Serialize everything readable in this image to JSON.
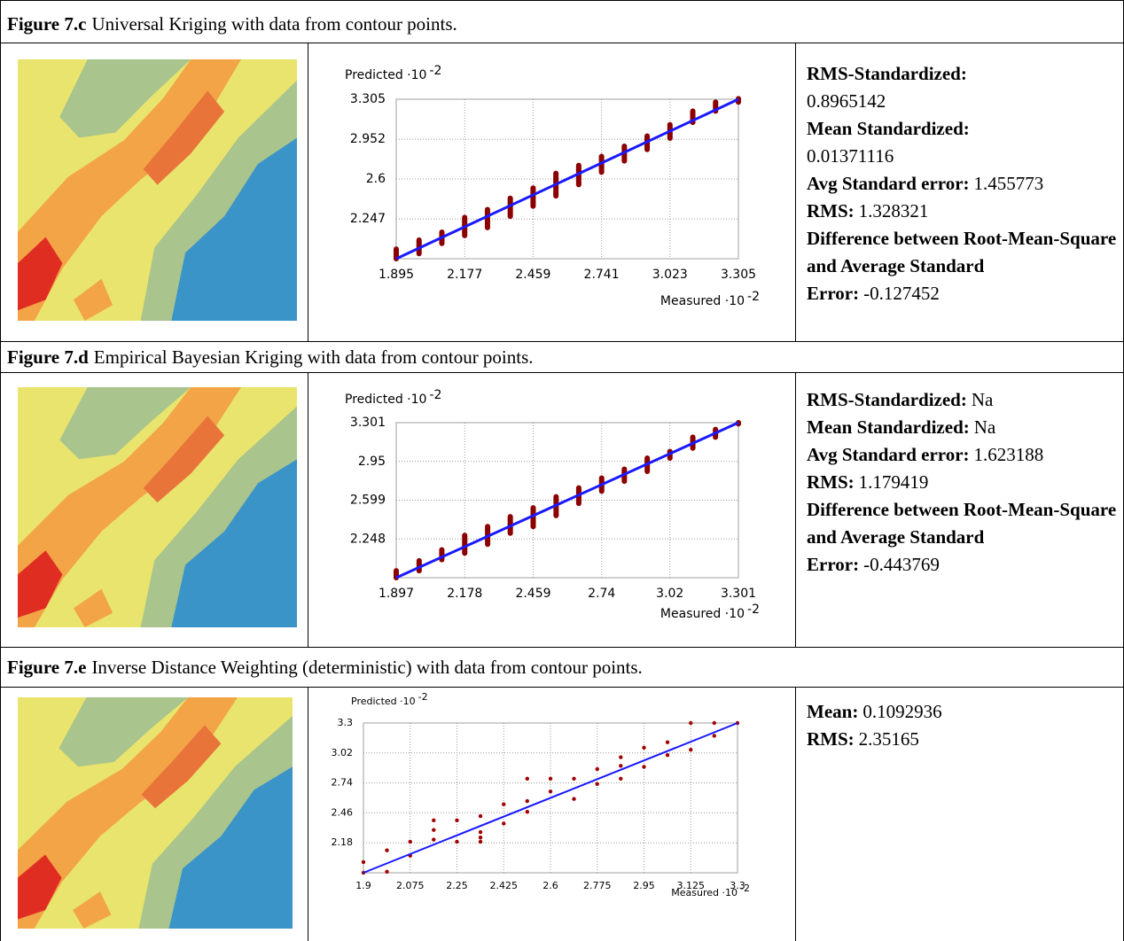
{
  "figures": [
    {
      "caption": {
        "label": "Figure 7.c",
        "text": "Universal Kriging with data from contour points."
      },
      "chart": {
        "type": "scatter",
        "ylabel": "Predicted ·10",
        "ylabel_exponent": "-2",
        "xlabel": "Measured ·10",
        "xlabel_exponent": "-2",
        "xlim": [
          1.895,
          3.305
        ],
        "ylim": [
          1.895,
          3.305
        ],
        "xticks": [
          1.895,
          2.177,
          2.459,
          2.741,
          3.023,
          3.305
        ],
        "yticks": [
          2.247,
          2.6,
          2.952,
          3.305
        ],
        "grid": true,
        "columns": {
          "color": "#8b0000",
          "x": [
            1.895,
            1.989,
            2.083,
            2.177,
            2.271,
            2.365,
            2.459,
            2.553,
            2.647,
            2.741,
            2.835,
            2.929,
            3.023,
            3.117,
            3.211,
            3.305
          ],
          "ymin": [
            1.895,
            1.94,
            2.03,
            2.1,
            2.17,
            2.27,
            2.36,
            2.45,
            2.55,
            2.66,
            2.76,
            2.86,
            2.96,
            3.1,
            3.2,
            3.28
          ],
          "ymax": [
            1.98,
            2.06,
            2.13,
            2.26,
            2.33,
            2.43,
            2.52,
            2.65,
            2.72,
            2.8,
            2.89,
            2.98,
            3.08,
            3.2,
            3.28,
            3.31
          ]
        },
        "fit": {
          "color": "#1a1aff",
          "x": [
            1.895,
            3.305
          ],
          "y": [
            1.895,
            3.305
          ]
        }
      },
      "stats": [
        {
          "label": "RMS-Standardized:",
          "value": "0.8965142"
        },
        {
          "label": "Mean Standardized:",
          "value": "0.01371116"
        },
        {
          "label": "Avg Standard error:",
          "value": "1.455773"
        },
        {
          "label": "RMS:",
          "value": "1.328321"
        },
        {
          "label": "Difference between Root-Mean-Square and Average Standard Error:",
          "value": "-0.127452"
        }
      ]
    },
    {
      "caption": {
        "label": "Figure 7.d",
        "text": "Empirical Bayesian Kriging with data from contour points."
      },
      "chart": {
        "type": "scatter",
        "ylabel": "Predicted ·10",
        "ylabel_exponent": "-2",
        "xlabel": "Measured ·10",
        "xlabel_exponent": "-2",
        "xlim": [
          1.897,
          3.301
        ],
        "ylim": [
          1.897,
          3.301
        ],
        "xticks": [
          1.897,
          2.178,
          2.459,
          2.74,
          3.02,
          3.301
        ],
        "yticks": [
          2.248,
          2.599,
          2.95,
          3.301
        ],
        "grid": true,
        "columns": {
          "color": "#8b0000",
          "x": [
            1.897,
            1.991,
            2.084,
            2.178,
            2.272,
            2.365,
            2.459,
            2.553,
            2.646,
            2.74,
            2.833,
            2.927,
            3.02,
            3.114,
            3.207,
            3.301
          ],
          "ymin": [
            1.897,
            1.96,
            2.06,
            2.12,
            2.2,
            2.3,
            2.36,
            2.46,
            2.57,
            2.68,
            2.77,
            2.86,
            2.98,
            3.07,
            3.17,
            3.29
          ],
          "ymax": [
            1.96,
            2.05,
            2.15,
            2.28,
            2.36,
            2.45,
            2.53,
            2.63,
            2.71,
            2.8,
            2.88,
            2.98,
            3.04,
            3.17,
            3.24,
            3.301
          ]
        },
        "fit": {
          "color": "#1a1aff",
          "x": [
            1.897,
            3.301
          ],
          "y": [
            1.897,
            3.301
          ]
        }
      },
      "stats": [
        {
          "label": "RMS-Standardized:",
          "value": "Na"
        },
        {
          "label": "Mean Standardized:",
          "value": "Na"
        },
        {
          "label": "Avg Standard error:",
          "value": "1.623188"
        },
        {
          "label": "RMS:",
          "value": "1.179419"
        },
        {
          "label": "Difference between Root-Mean-Square and Average Standard Error:",
          "value": "-0.443769"
        }
      ]
    },
    {
      "caption": {
        "label": "Figure 7.e",
        "text": "Inverse Distance Weighting (deterministic) with data from contour points."
      },
      "chart": {
        "type": "scatter",
        "ylabel": "Predicted ·10",
        "ylabel_exponent": "-2",
        "xlabel": "Measured ·10",
        "xlabel_exponent": "-2",
        "xlim": [
          1.9,
          3.3
        ],
        "ylim": [
          1.9,
          3.3
        ],
        "xticks": [
          1.9,
          2.075,
          2.25,
          2.425,
          2.6,
          2.775,
          2.95,
          3.125,
          3.3
        ],
        "yticks": [
          2.18,
          2.46,
          2.74,
          3.02,
          3.3
        ],
        "grid": true,
        "points": {
          "color": "#a00000",
          "x": [
            1.9,
            1.9,
            1.988,
            1.988,
            2.075,
            2.075,
            2.163,
            2.163,
            2.163,
            2.25,
            2.25,
            2.338,
            2.338,
            2.338,
            2.338,
            2.425,
            2.425,
            2.513,
            2.513,
            2.513,
            2.6,
            2.6,
            2.688,
            2.688,
            2.775,
            2.775,
            2.863,
            2.863,
            2.863,
            2.95,
            2.95,
            3.038,
            3.038,
            3.125,
            3.125,
            3.213,
            3.213,
            3.3
          ],
          "y": [
            1.9,
            2.0,
            1.91,
            2.11,
            2.06,
            2.19,
            2.21,
            2.3,
            2.39,
            2.19,
            2.39,
            2.19,
            2.23,
            2.28,
            2.43,
            2.36,
            2.54,
            2.47,
            2.57,
            2.78,
            2.66,
            2.78,
            2.59,
            2.78,
            2.73,
            2.87,
            2.78,
            2.9,
            2.98,
            2.89,
            3.07,
            3.0,
            3.12,
            3.05,
            3.3,
            3.18,
            3.3,
            3.3
          ]
        },
        "fit": {
          "color": "#1a1aff",
          "x": [
            1.9,
            3.3
          ],
          "y": [
            1.9,
            3.3
          ]
        }
      },
      "stats": [
        {
          "label": "Mean:",
          "value": "0.1092936"
        },
        {
          "label": "RMS:",
          "value": "2.35165"
        }
      ]
    }
  ]
}
